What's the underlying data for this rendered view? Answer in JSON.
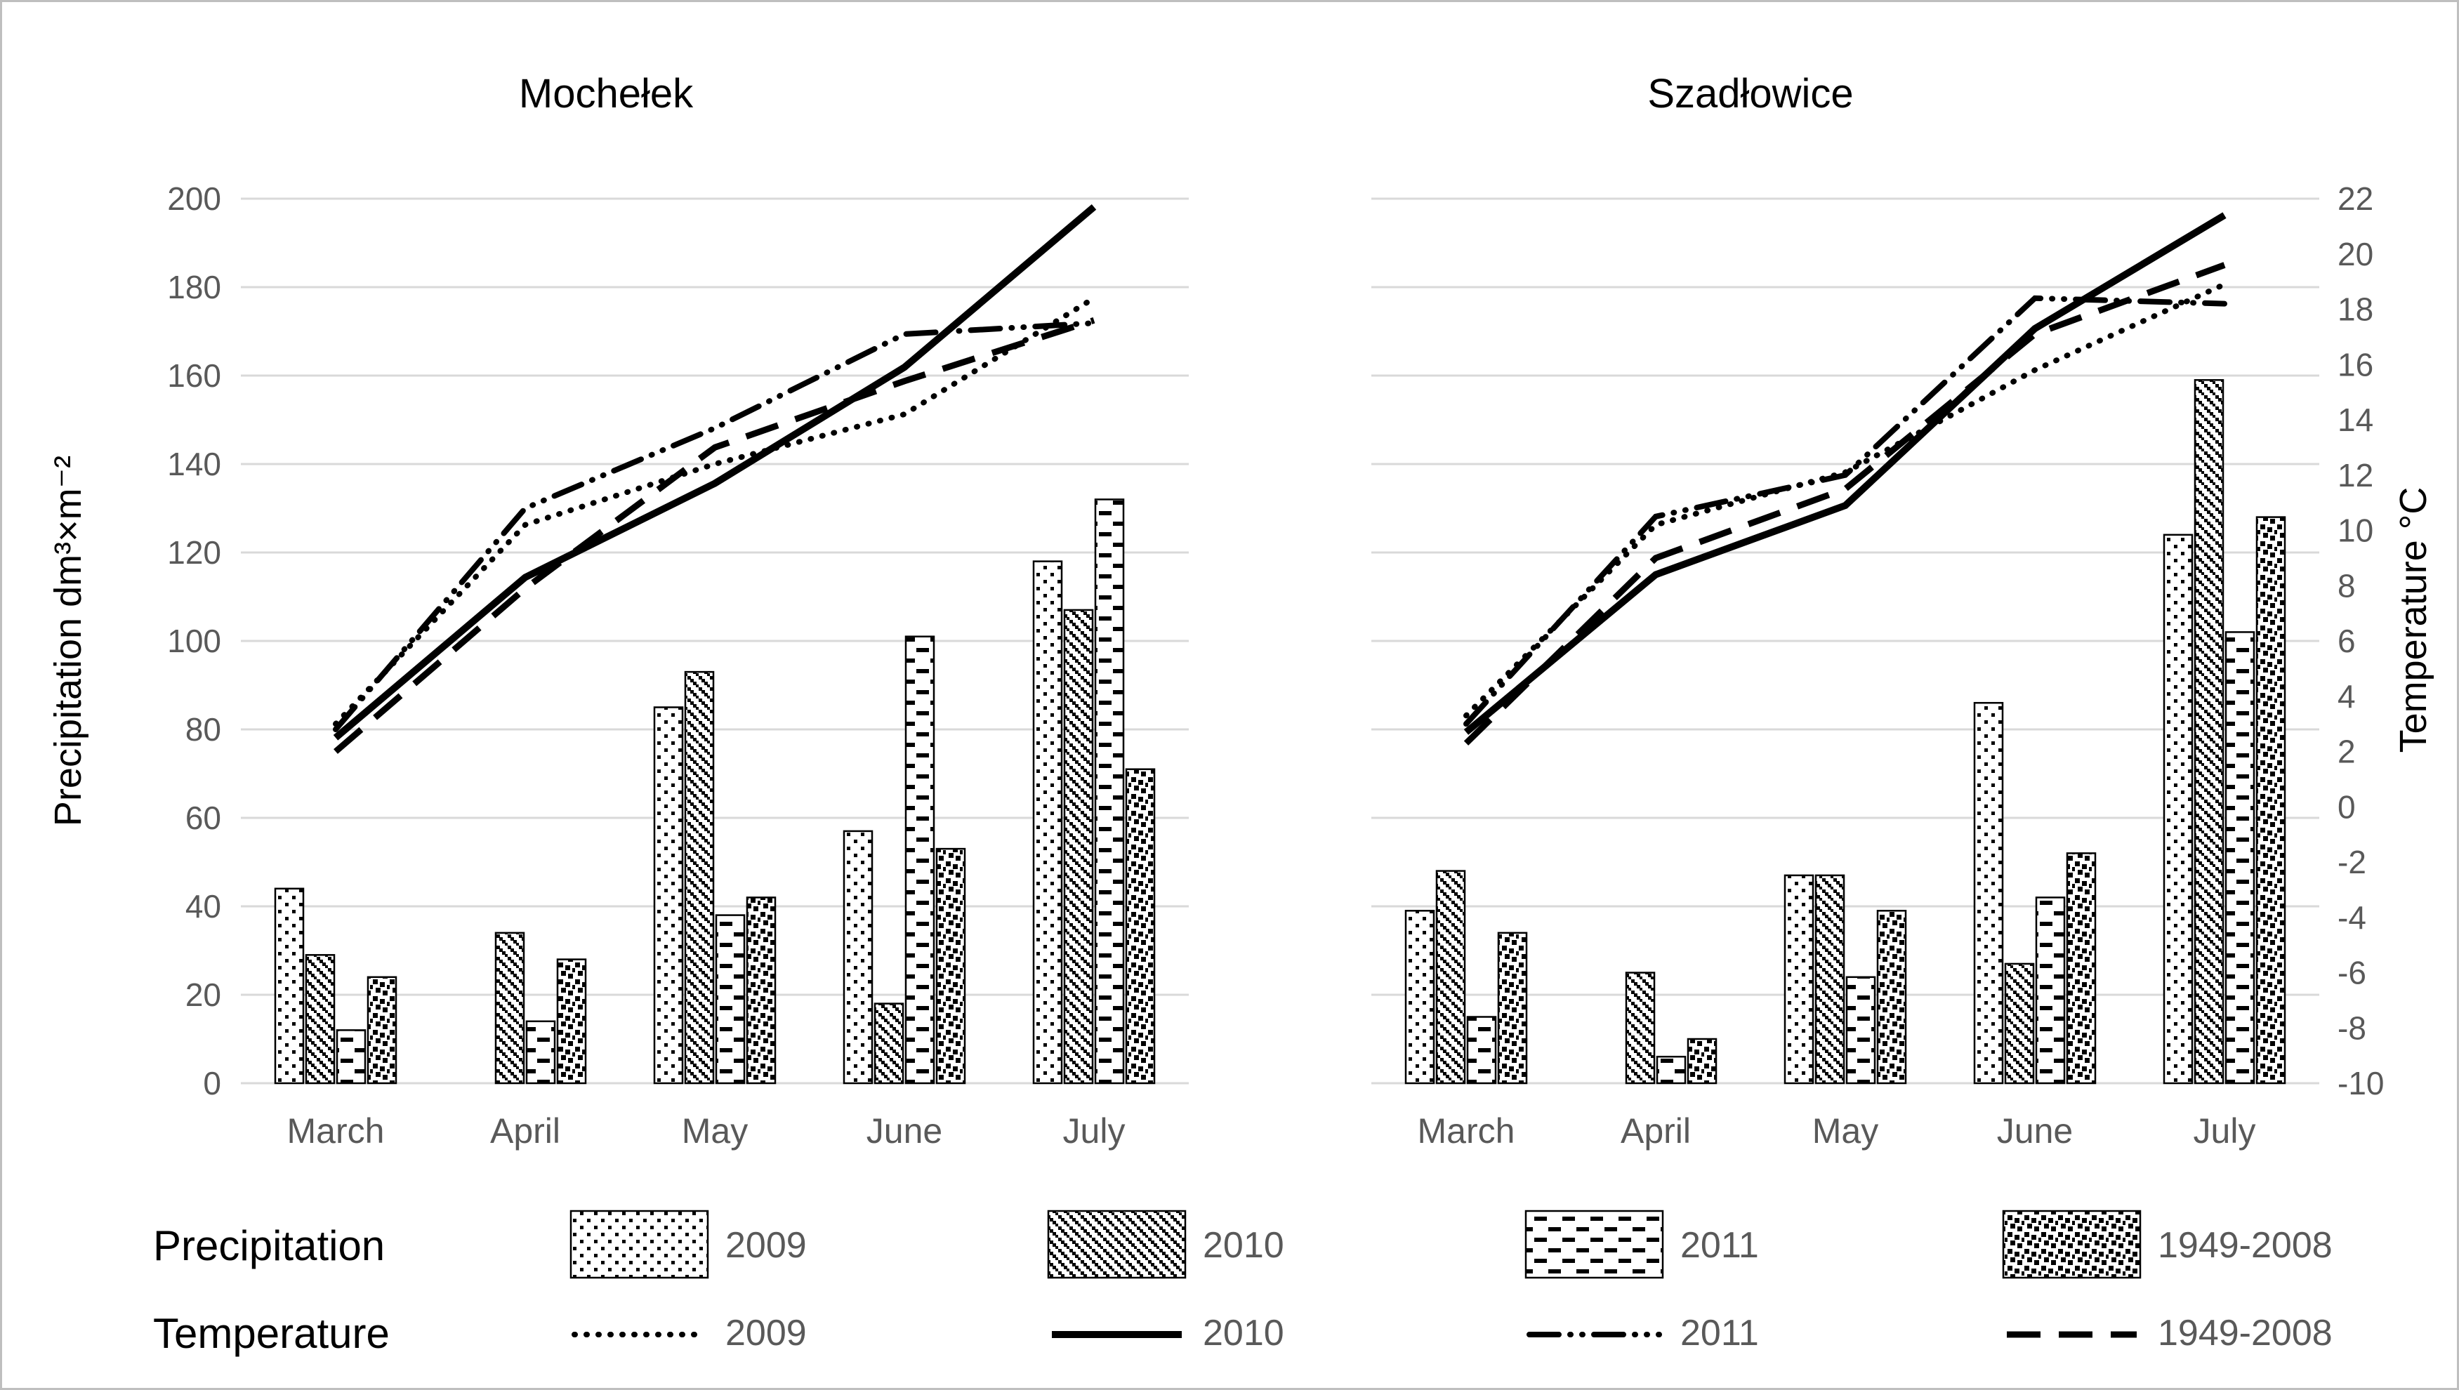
{
  "legend": {
    "precipitation_label": "Precipitation",
    "temperature_label": "Temperature",
    "years": [
      "2009",
      "2010",
      "2011",
      "1949-2008"
    ]
  },
  "chart_data": {
    "type": "bar+line combo, two panels sharing axes",
    "categories": [
      "March",
      "April",
      "May",
      "June",
      "July"
    ],
    "precip_axis": {
      "label": "Precipitation dm³×m⁻²",
      "min": 0,
      "max": 200,
      "step": 20,
      "grid": true
    },
    "temp_axis": {
      "label": "Temperature °C",
      "min": -10,
      "max": 22,
      "step": 2
    },
    "panels": [
      {
        "title": "Mochełek",
        "precipitation_series": [
          {
            "name": "2009",
            "pattern": "sparse-dotted-squares",
            "values": [
              44,
              0,
              85,
              57,
              118
            ]
          },
          {
            "name": "2010",
            "pattern": "diagonal-hatch",
            "values": [
              29,
              34,
              93,
              18,
              107
            ]
          },
          {
            "name": "2011",
            "pattern": "horizontal-dashes",
            "values": [
              12,
              14,
              38,
              101,
              132
            ]
          },
          {
            "name": "1949-2008",
            "pattern": "dense-speckle",
            "values": [
              24,
              28,
              42,
              53,
              71
            ]
          }
        ],
        "temperature_series": [
          {
            "name": "2009",
            "style": "dotted",
            "values": [
              3.0,
              10.2,
              12.4,
              14.2,
              18.4
            ]
          },
          {
            "name": "2010",
            "style": "solid",
            "values": [
              2.5,
              8.3,
              11.7,
              15.9,
              21.7
            ]
          },
          {
            "name": "2011",
            "style": "dash-dot-dot",
            "values": [
              2.8,
              10.8,
              13.7,
              17.1,
              17.5
            ]
          },
          {
            "name": "1949-2008",
            "style": "long-dash",
            "values": [
              2.0,
              7.9,
              13.0,
              15.4,
              17.6
            ]
          }
        ]
      },
      {
        "title": "Szadłowice",
        "precipitation_series": [
          {
            "name": "2009",
            "pattern": "sparse-dotted-squares",
            "values": [
              39,
              0,
              47,
              86,
              124
            ]
          },
          {
            "name": "2010",
            "pattern": "diagonal-hatch",
            "values": [
              48,
              25,
              47,
              27,
              159
            ]
          },
          {
            "name": "2011",
            "pattern": "horizontal-dashes",
            "values": [
              15,
              6,
              24,
              42,
              102
            ]
          },
          {
            "name": "1949-2008",
            "pattern": "dense-speckle",
            "values": [
              34,
              10,
              39,
              52,
              128
            ]
          }
        ],
        "temperature_series": [
          {
            "name": "2009",
            "style": "dotted",
            "values": [
              3.3,
              10.2,
              12.1,
              15.8,
              18.9
            ]
          },
          {
            "name": "2010",
            "style": "solid",
            "values": [
              2.7,
              8.4,
              10.9,
              17.3,
              21.4
            ]
          },
          {
            "name": "2011",
            "style": "dash-dot-dot",
            "values": [
              3.0,
              10.5,
              12.0,
              18.4,
              18.2
            ]
          },
          {
            "name": "1949-2008",
            "style": "long-dash",
            "values": [
              2.3,
              9.0,
              11.5,
              17.1,
              19.6
            ]
          }
        ]
      }
    ]
  }
}
